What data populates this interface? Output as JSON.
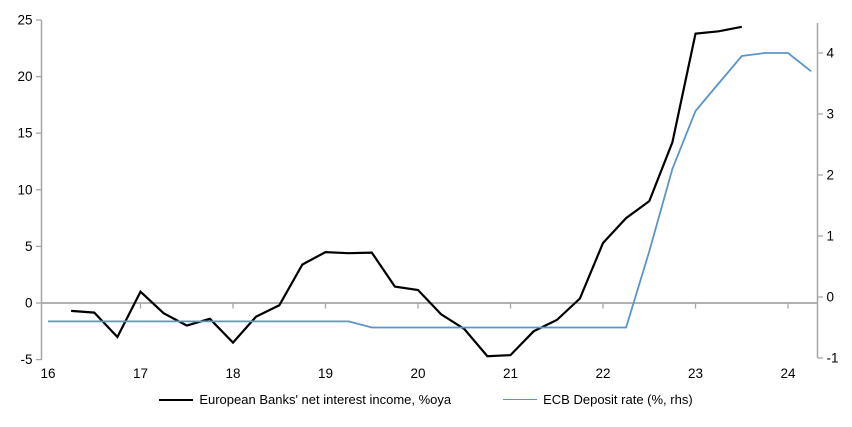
{
  "chart_data": {
    "type": "line",
    "title": "",
    "xlabel": "",
    "ylabel_left": "",
    "ylabel_right": "",
    "grid": "zero-line-only",
    "legend_position": "bottom",
    "x_axis": {
      "ticks": [
        16,
        17,
        18,
        19,
        20,
        21,
        22,
        23,
        24
      ],
      "range": [
        16,
        24.35
      ]
    },
    "left_axis": {
      "ticks": [
        -5,
        0,
        5,
        10,
        15,
        20,
        25
      ],
      "range": [
        -5,
        25
      ]
    },
    "right_axis": {
      "ticks": [
        -1,
        0,
        1,
        2,
        3,
        4
      ],
      "range": [
        -1,
        4.5
      ]
    },
    "colors": {
      "axis_gray": "#a6a6a6",
      "zero_line": "#a6a6a6",
      "series_nii": "#000000",
      "series_ecb": "#5b94cd"
    },
    "series": [
      {
        "name": "European Banks' net interest income, %oya",
        "axis": "left",
        "color": "#000000",
        "stroke_width": 2.2,
        "points": [
          [
            16.25,
            -0.7
          ],
          [
            16.5,
            -0.85
          ],
          [
            16.75,
            -3.0
          ],
          [
            17.0,
            1.0
          ],
          [
            17.25,
            -0.9
          ],
          [
            17.5,
            -2.0
          ],
          [
            17.75,
            -1.4
          ],
          [
            18.0,
            -3.5
          ],
          [
            18.25,
            -1.2
          ],
          [
            18.5,
            -0.2
          ],
          [
            18.75,
            3.4
          ],
          [
            19.0,
            4.5
          ],
          [
            19.25,
            4.4
          ],
          [
            19.5,
            4.45
          ],
          [
            19.75,
            1.45
          ],
          [
            20.0,
            1.15
          ],
          [
            20.25,
            -1.0
          ],
          [
            20.5,
            -2.3
          ],
          [
            20.75,
            -4.7
          ],
          [
            21.0,
            -4.6
          ],
          [
            21.25,
            -2.5
          ],
          [
            21.5,
            -1.5
          ],
          [
            21.75,
            0.4
          ],
          [
            22.0,
            5.3
          ],
          [
            22.25,
            7.5
          ],
          [
            22.5,
            9.0
          ],
          [
            22.75,
            14.2
          ],
          [
            23.0,
            23.8
          ],
          [
            23.25,
            24.0
          ],
          [
            23.5,
            24.4
          ]
        ]
      },
      {
        "name": "ECB Deposit rate (%, rhs)",
        "axis": "right",
        "color": "#5b94cd",
        "stroke_width": 1.8,
        "points": [
          [
            16.0,
            -0.4
          ],
          [
            19.25,
            -0.4
          ],
          [
            19.5,
            -0.5
          ],
          [
            22.25,
            -0.5
          ],
          [
            22.5,
            0.75
          ],
          [
            22.75,
            2.1
          ],
          [
            23.0,
            3.05
          ],
          [
            23.25,
            3.5
          ],
          [
            23.5,
            3.95
          ],
          [
            23.75,
            4.0
          ],
          [
            24.0,
            4.0
          ],
          [
            24.25,
            3.7
          ]
        ]
      }
    ]
  }
}
